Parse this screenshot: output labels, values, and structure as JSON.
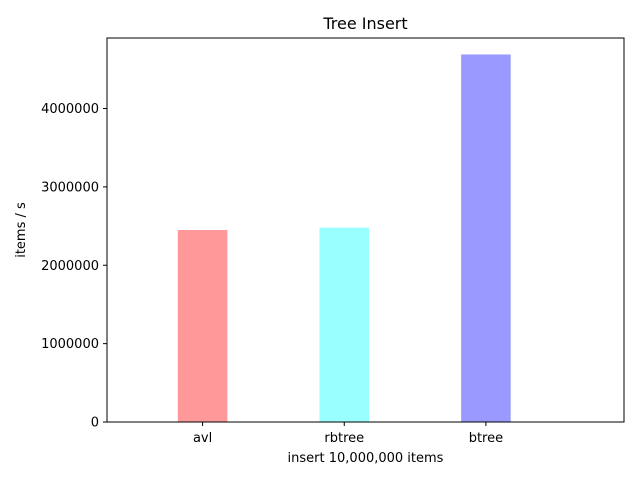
{
  "chart_data": {
    "type": "bar",
    "title": "Tree Insert",
    "xlabel": "insert 10,000,000 items",
    "ylabel": "items / s",
    "categories": [
      "avl",
      "rbtree",
      "btree"
    ],
    "values": [
      2450000,
      2480000,
      4690000
    ],
    "colors": [
      "#ff9999",
      "#99ffff",
      "#9999ff"
    ],
    "ylim": [
      0,
      4900000
    ],
    "yticks": [
      0,
      1000000,
      2000000,
      3000000,
      4000000
    ],
    "ytick_labels": [
      "0",
      "1000000",
      "2000000",
      "3000000",
      "4000000"
    ],
    "grid": false,
    "legend": "none"
  }
}
